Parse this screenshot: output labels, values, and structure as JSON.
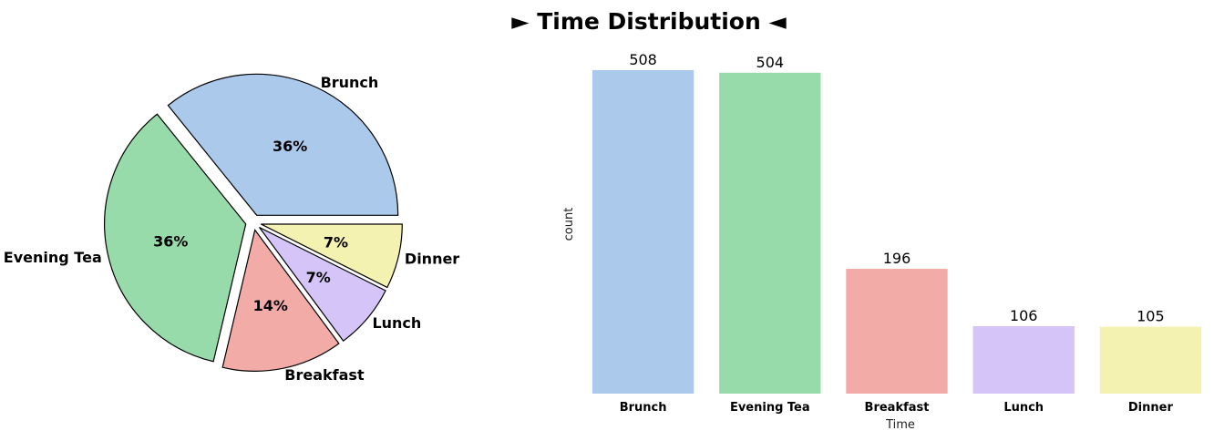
{
  "title": "► Time Distribution ◄",
  "chart_data": [
    {
      "type": "pie",
      "labels": [
        "Brunch",
        "Evening Tea",
        "Breakfast",
        "Lunch",
        "Dinner"
      ],
      "values": [
        508,
        504,
        196,
        106,
        105
      ],
      "percent_labels": [
        "36%",
        "36%",
        "14%",
        "7%",
        "7%"
      ],
      "colors": [
        "#abc9ea",
        "#98dbaa",
        "#f3aba8",
        "#d4c4f7",
        "#f4f2b0"
      ],
      "exploded": true,
      "edgecolor": "#000000"
    },
    {
      "type": "bar",
      "categories": [
        "Brunch",
        "Evening Tea",
        "Breakfast",
        "Lunch",
        "Dinner"
      ],
      "values": [
        508,
        504,
        196,
        106,
        105
      ],
      "data_labels": [
        "508",
        "504",
        "196",
        "106",
        "105"
      ],
      "colors": [
        "#abc9ea",
        "#98dbaa",
        "#f3aba8",
        "#d4c4f7",
        "#f4f2b0"
      ],
      "xlabel": "Time",
      "ylabel": "count",
      "ylim": [
        0,
        508
      ],
      "grid": false
    }
  ]
}
